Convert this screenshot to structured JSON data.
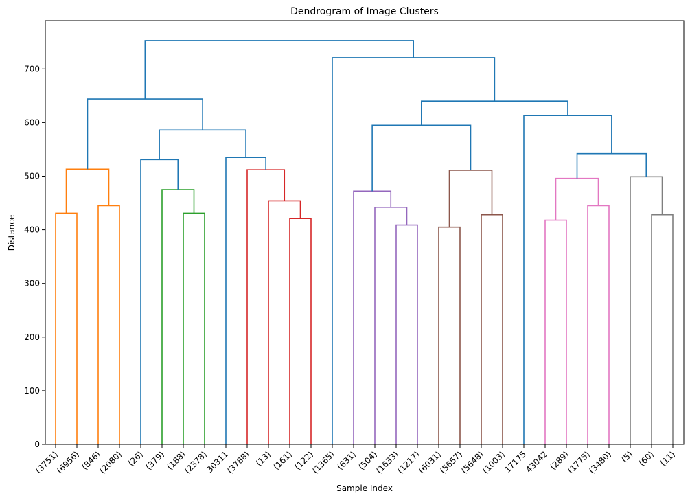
{
  "chart_data": {
    "type": "dendrogram",
    "title": "Dendrogram of Image Clusters",
    "xlabel": "Sample Index",
    "ylabel": "Distance",
    "ylim": [
      0,
      790
    ],
    "yticks": [
      0,
      100,
      200,
      300,
      400,
      500,
      600,
      700
    ],
    "leaf_labels": [
      "(3751)",
      "(6956)",
      "(846)",
      "(2080)",
      "(26)",
      "(379)",
      "(188)",
      "(2378)",
      "30311",
      "(3788)",
      "(13)",
      "(161)",
      "(122)",
      "(1365)",
      "(631)",
      "(504)",
      "(1633)",
      "(1217)",
      "(6031)",
      "(5657)",
      "(5648)",
      "(1003)",
      "17175",
      "43042",
      "(289)",
      "(1775)",
      "(3480)",
      "(5)",
      "(60)",
      "(11)"
    ],
    "colors": {
      "above_threshold": "#1f77b4",
      "orange": "#ff7f0e",
      "green": "#2ca02c",
      "red": "#d62728",
      "purple": "#9467bd",
      "brown": "#8c564b",
      "pink": "#e377c2",
      "gray": "#7f7f7f"
    },
    "merges": [
      {
        "id": "m1",
        "left": "L0",
        "right": "L1",
        "height": 431,
        "color": "orange"
      },
      {
        "id": "m2",
        "left": "L2",
        "right": "L3",
        "height": 445,
        "color": "orange"
      },
      {
        "id": "m3",
        "left": "m1",
        "right": "m2",
        "height": 513,
        "color": "orange"
      },
      {
        "id": "m4",
        "left": "L6",
        "right": "L7",
        "height": 431,
        "color": "green"
      },
      {
        "id": "m5",
        "left": "L5",
        "right": "m4",
        "height": 475,
        "color": "green"
      },
      {
        "id": "m6",
        "left": "L4",
        "right": "m5",
        "height": 531,
        "color": "above_threshold"
      },
      {
        "id": "m7",
        "left": "L11",
        "right": "L12",
        "height": 421,
        "color": "red"
      },
      {
        "id": "m8",
        "left": "L10",
        "right": "m7",
        "height": 454,
        "color": "red"
      },
      {
        "id": "m9",
        "left": "L9",
        "right": "m8",
        "height": 512,
        "color": "red"
      },
      {
        "id": "m10",
        "left": "L8",
        "right": "m9",
        "height": 535,
        "color": "above_threshold"
      },
      {
        "id": "m11",
        "left": "m6",
        "right": "m10",
        "height": 586,
        "color": "above_threshold"
      },
      {
        "id": "m12",
        "left": "m3",
        "right": "m11",
        "height": 644,
        "color": "above_threshold"
      },
      {
        "id": "m13",
        "left": "L16",
        "right": "L17",
        "height": 409,
        "color": "purple"
      },
      {
        "id": "m14",
        "left": "L15",
        "right": "m13",
        "height": 442,
        "color": "purple"
      },
      {
        "id": "m15",
        "left": "L14",
        "right": "m14",
        "height": 472,
        "color": "purple"
      },
      {
        "id": "m16",
        "left": "L18",
        "right": "L19",
        "height": 405,
        "color": "brown"
      },
      {
        "id": "m17",
        "left": "L20",
        "right": "L21",
        "height": 428,
        "color": "brown"
      },
      {
        "id": "m18",
        "left": "m16",
        "right": "m17",
        "height": 511,
        "color": "brown"
      },
      {
        "id": "m19",
        "left": "m15",
        "right": "m18",
        "height": 595,
        "color": "above_threshold"
      },
      {
        "id": "m20",
        "left": "L23",
        "right": "L24",
        "height": 418,
        "color": "pink"
      },
      {
        "id": "m21",
        "left": "L25",
        "right": "L26",
        "height": 445,
        "color": "pink"
      },
      {
        "id": "m22",
        "left": "m20",
        "right": "m21",
        "height": 496,
        "color": "pink"
      },
      {
        "id": "m23",
        "left": "L28",
        "right": "L29",
        "height": 428,
        "color": "gray"
      },
      {
        "id": "m24",
        "left": "L27",
        "right": "m23",
        "height": 499,
        "color": "gray"
      },
      {
        "id": "m25",
        "left": "m22",
        "right": "m24",
        "height": 542,
        "color": "above_threshold"
      },
      {
        "id": "m26",
        "left": "L22",
        "right": "m25",
        "height": 613,
        "color": "above_threshold"
      },
      {
        "id": "m27",
        "left": "m19",
        "right": "m26",
        "height": 640,
        "color": "above_threshold"
      },
      {
        "id": "m28",
        "left": "L13",
        "right": "m27",
        "height": 721,
        "color": "above_threshold"
      },
      {
        "id": "m29",
        "left": "m12",
        "right": "m28",
        "height": 753,
        "color": "above_threshold"
      }
    ]
  }
}
